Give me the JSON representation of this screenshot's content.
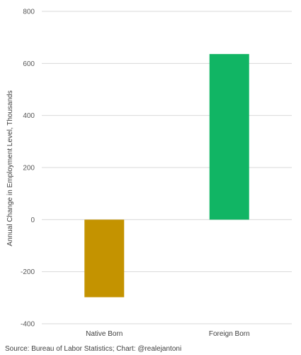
{
  "chart_data": {
    "type": "bar",
    "categories": [
      "Native Born",
      "Foreign Born"
    ],
    "values": [
      -298,
      636
    ],
    "ylabel": "Annual Change in Employment Level, Thousands",
    "ylim": [
      -400,
      800
    ],
    "yticks": [
      800,
      600,
      400,
      200,
      0,
      -200,
      -400
    ],
    "ytick_labels": [
      "800",
      "600",
      "400",
      "200",
      "0",
      "-200",
      "-400"
    ],
    "colors": [
      "#c49300",
      "#11b564"
    ],
    "grid": true,
    "legend": "none"
  },
  "source": "Source: Bureau of Labor Statistics; Chart: @realejantoni"
}
